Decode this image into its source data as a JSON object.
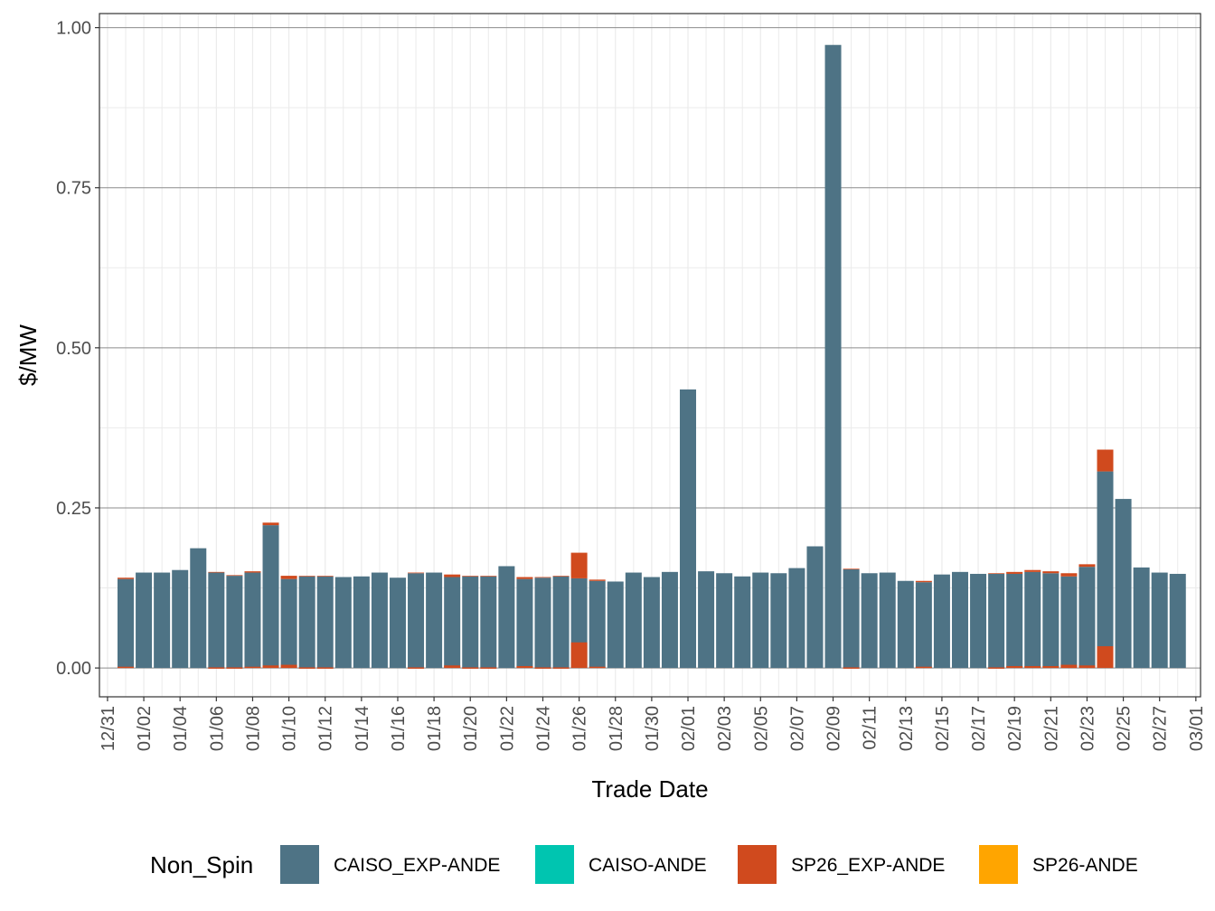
{
  "chart_data": {
    "type": "bar",
    "stacked": true,
    "title": "",
    "xlabel": "Trade Date",
    "ylabel": "$/MW",
    "ylim": [
      -0.045,
      1.022
    ],
    "y_ticks": [
      0.0,
      0.25,
      0.5,
      0.75,
      1.0
    ],
    "y_tick_labels": [
      "0.00",
      "0.25",
      "0.50",
      "0.75",
      "1.00"
    ],
    "x_tick_labels": [
      "12/31",
      "01/02",
      "01/04",
      "01/06",
      "01/08",
      "01/10",
      "01/12",
      "01/14",
      "01/16",
      "01/18",
      "01/20",
      "01/22",
      "01/24",
      "01/26",
      "01/28",
      "01/30",
      "02/01",
      "02/03",
      "02/05",
      "02/07",
      "02/09",
      "02/11",
      "02/13",
      "02/15",
      "02/17",
      "02/19",
      "02/21",
      "02/23",
      "02/25",
      "02/27",
      "03/01"
    ],
    "grid": true,
    "legend_position": "bottom",
    "legend_title": "Non_Spin",
    "categories": [
      "01/01",
      "01/02",
      "01/03",
      "01/04",
      "01/05",
      "01/06",
      "01/07",
      "01/08",
      "01/09",
      "01/10",
      "01/11",
      "01/12",
      "01/13",
      "01/14",
      "01/15",
      "01/16",
      "01/17",
      "01/18",
      "01/19",
      "01/20",
      "01/21",
      "01/22",
      "01/23",
      "01/24",
      "01/25",
      "01/26",
      "01/27",
      "01/28",
      "01/29",
      "01/30",
      "01/31",
      "02/01",
      "02/02",
      "02/03",
      "02/04",
      "02/05",
      "02/06",
      "02/07",
      "02/08",
      "02/09",
      "02/10",
      "02/11",
      "02/12",
      "02/13",
      "02/14",
      "02/15",
      "02/16",
      "02/17",
      "02/18",
      "02/19",
      "02/20",
      "02/21",
      "02/22",
      "02/23",
      "02/24",
      "02/25",
      "02/26",
      "02/27",
      "02/28"
    ],
    "series": [
      {
        "name": "CAISO_EXP-ANDE",
        "color": "#4e7385",
        "values": [
          0.139,
          0.149,
          0.149,
          0.153,
          0.187,
          0.149,
          0.144,
          0.149,
          0.223,
          0.139,
          0.143,
          0.143,
          0.142,
          0.143,
          0.149,
          0.141,
          0.148,
          0.149,
          0.142,
          0.143,
          0.143,
          0.159,
          0.139,
          0.141,
          0.143,
          0.14,
          0.136,
          0.135,
          0.149,
          0.142,
          0.15,
          0.435,
          0.151,
          0.148,
          0.143,
          0.149,
          0.148,
          0.156,
          0.19,
          0.973,
          0.154,
          0.148,
          0.149,
          0.136,
          0.134,
          0.146,
          0.15,
          0.147,
          0.147,
          0.147,
          0.15,
          0.148,
          0.143,
          0.158,
          0.307,
          0.264,
          0.157,
          0.149,
          0.147
        ]
      },
      {
        "name": "CAISO-ANDE",
        "color": "#00c5b0",
        "values": [
          0,
          0,
          0,
          0,
          0,
          0,
          0,
          0,
          0,
          0,
          0,
          0,
          0,
          0,
          0,
          0,
          0,
          0,
          0,
          0,
          0,
          0,
          0,
          0,
          0,
          0,
          0,
          0,
          0,
          0,
          0,
          0,
          0,
          0,
          0,
          0,
          0,
          0,
          0,
          0,
          0,
          0,
          0,
          0,
          0,
          0,
          0,
          0,
          0,
          0,
          0,
          0,
          0,
          0,
          0,
          0,
          0,
          0,
          0
        ]
      },
      {
        "name": "SP26_EXP-ANDE",
        "color": "#d04a1e",
        "values": [
          0.002,
          0,
          0,
          0,
          0,
          0.001,
          0.001,
          0.002,
          0.004,
          0.005,
          0.001,
          0.001,
          0,
          0,
          0,
          0,
          0.001,
          0,
          0.004,
          0.001,
          0.001,
          0,
          0.003,
          0.001,
          0.001,
          0.04,
          0.002,
          0,
          0,
          0,
          0,
          0,
          0,
          0,
          0,
          0,
          0,
          0,
          0,
          0,
          0.001,
          0,
          0,
          0,
          0.002,
          0,
          0,
          0,
          0.001,
          0.003,
          0.003,
          0.003,
          0.005,
          0.004,
          0.034,
          0,
          0,
          0,
          0
        ]
      },
      {
        "name": "SP26-ANDE",
        "color": "#ffa500",
        "values": [
          0,
          0,
          0,
          0,
          0,
          0,
          0,
          0,
          0,
          0,
          0,
          0,
          0,
          0,
          0,
          0,
          0,
          0,
          0,
          0,
          0,
          0,
          0,
          0,
          0,
          0,
          0,
          0,
          0,
          0,
          0,
          0,
          0,
          0,
          0,
          0,
          0,
          0,
          0,
          0,
          0,
          0,
          0,
          0,
          0,
          0,
          0,
          0,
          0,
          0,
          0,
          0,
          0,
          0,
          0,
          0,
          0,
          0,
          0
        ]
      }
    ]
  }
}
